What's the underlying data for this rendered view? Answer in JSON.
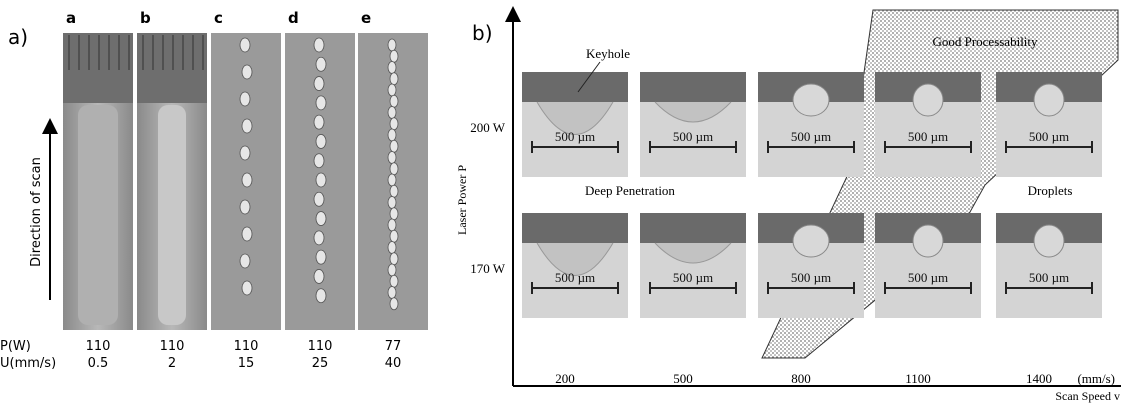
{
  "panel_a": {
    "label": "a)",
    "direction": "Direction of scan",
    "row_power": "P(W)",
    "row_speed": "U(mm/s)",
    "columns": [
      {
        "letter": "a",
        "power": "110",
        "speed": "0.5"
      },
      {
        "letter": "b",
        "power": "110",
        "speed": "2"
      },
      {
        "letter": "c",
        "power": "110",
        "speed": "15"
      },
      {
        "letter": "d",
        "power": "110",
        "speed": "25"
      },
      {
        "letter": "e",
        "power": "77",
        "speed": "40"
      }
    ]
  },
  "panel_b": {
    "label": "b)",
    "y_axis": "Laser Power P",
    "x_axis": "Scan Speed v",
    "x_unit": "(mm/s)",
    "x_ticks": [
      "200",
      "500",
      "800",
      "1100",
      "1400"
    ],
    "y_ticks": [
      "200 W",
      "170 W"
    ],
    "regions": {
      "keyhole": "Keyhole",
      "good": "Good Processability",
      "deep": "Deep Penetration",
      "droplets": "Droplets"
    },
    "scale_bar": "500 µm"
  }
}
